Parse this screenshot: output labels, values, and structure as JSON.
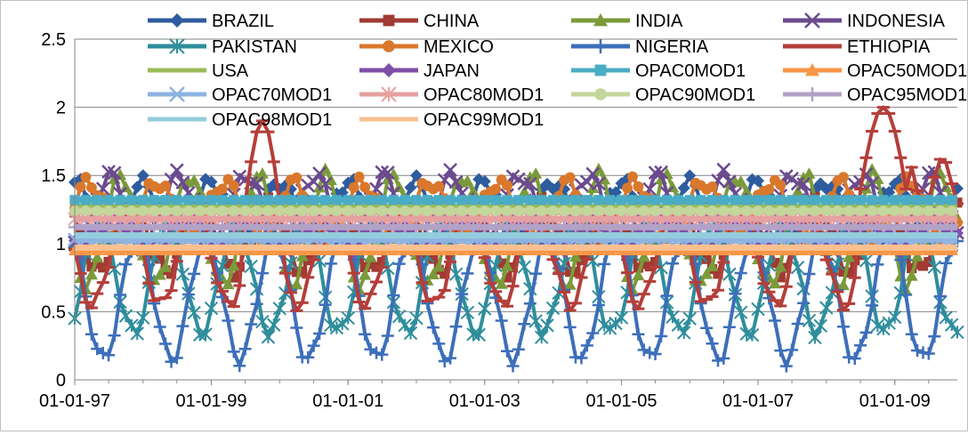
{
  "chart_data": {
    "type": "line",
    "title": "",
    "xlabel": "",
    "ylabel": "",
    "ylim": [
      0,
      2.5
    ],
    "yticks": [
      0,
      0.5,
      1,
      1.5,
      2,
      2.5
    ],
    "ytick_labels": [
      "0",
      "0.5",
      "1",
      "1.5",
      "2",
      "2.5"
    ],
    "xlim": [
      "1997-01-01",
      "2009-12-01"
    ],
    "xticks": [
      "1997-01-01",
      "1999-01-01",
      "2001-01-01",
      "2003-01-01",
      "2005-01-01",
      "2007-01-01",
      "2009-01-01"
    ],
    "xtick_labels": [
      "01-01-97",
      "01-01-99",
      "01-01-01",
      "01-01-03",
      "01-01-05",
      "01-01-07",
      "01-01-09"
    ],
    "grid": "horizontal",
    "legend_position": "top",
    "series": [
      {
        "name": "BRAZIL",
        "color": "#2E5C9E",
        "marker": "diamond",
        "style": "seasonal",
        "base": 1.25,
        "amp": 0.2,
        "phase": 0.0
      },
      {
        "name": "CHINA",
        "color": "#A03A32",
        "marker": "square",
        "style": "seasonal",
        "base": 1.05,
        "amp": 0.25,
        "phase": 1.0
      },
      {
        "name": "INDIA",
        "color": "#7A9A3A",
        "marker": "triangle",
        "style": "seasonal",
        "base": 1.1,
        "amp": 0.4,
        "phase": 2.0
      },
      {
        "name": "INDONESIA",
        "color": "#6B4A8E",
        "marker": "x",
        "style": "seasonal",
        "base": 1.25,
        "amp": 0.25,
        "phase": 3.0
      },
      {
        "name": "PAKISTAN",
        "color": "#2F8E9C",
        "marker": "asterisk",
        "style": "seasonal",
        "base": 0.75,
        "amp": 0.4,
        "phase": 4.0
      },
      {
        "name": "MEXICO",
        "color": "#D9782C",
        "marker": "circle",
        "style": "seasonal",
        "base": 1.25,
        "amp": 0.2,
        "phase": 5.0
      },
      {
        "name": "NIGERIA",
        "color": "#3D6FBA",
        "marker": "plus",
        "style": "seasonal",
        "base": 0.6,
        "amp": 0.45,
        "phase": 0.5
      },
      {
        "name": "ETHIOPIA",
        "color": "#B43E3A",
        "marker": "minus",
        "style": "ethiopia",
        "base": 0.9,
        "amp": 0.35,
        "phase": 1.5
      },
      {
        "name": "USA",
        "color": "#9BBB59",
        "marker": "none",
        "style": "flat",
        "base": 1.27
      },
      {
        "name": "JAPAN",
        "color": "#7F4FA8",
        "marker": "diamond",
        "style": "seasonal",
        "base": 1.08,
        "amp": 0.1,
        "phase": 2.5
      },
      {
        "name": "OPAC0MOD1",
        "color": "#4BACC6",
        "marker": "square",
        "style": "flat",
        "base": 1.32
      },
      {
        "name": "OPAC50MOD1",
        "color": "#F79646",
        "marker": "triangle",
        "style": "flat",
        "base": 0.95
      },
      {
        "name": "OPAC70MOD1",
        "color": "#8DB3E2",
        "marker": "x",
        "style": "flat",
        "base": 1.03
      },
      {
        "name": "OPAC80MOD1",
        "color": "#E6A0A0",
        "marker": "asterisk",
        "style": "flat",
        "base": 1.18
      },
      {
        "name": "OPAC90MOD1",
        "color": "#C3D69B",
        "marker": "circle",
        "style": "flat",
        "base": 1.24
      },
      {
        "name": "OPAC95MOD1",
        "color": "#B3A2C7",
        "marker": "plus",
        "style": "flat",
        "base": 1.12
      },
      {
        "name": "OPAC98MOD1",
        "color": "#93CDDD",
        "marker": "none",
        "style": "flat",
        "base": 1.06
      },
      {
        "name": "OPAC99MOD1",
        "color": "#FAC090",
        "marker": "none",
        "style": "flat",
        "base": 0.97
      }
    ]
  }
}
